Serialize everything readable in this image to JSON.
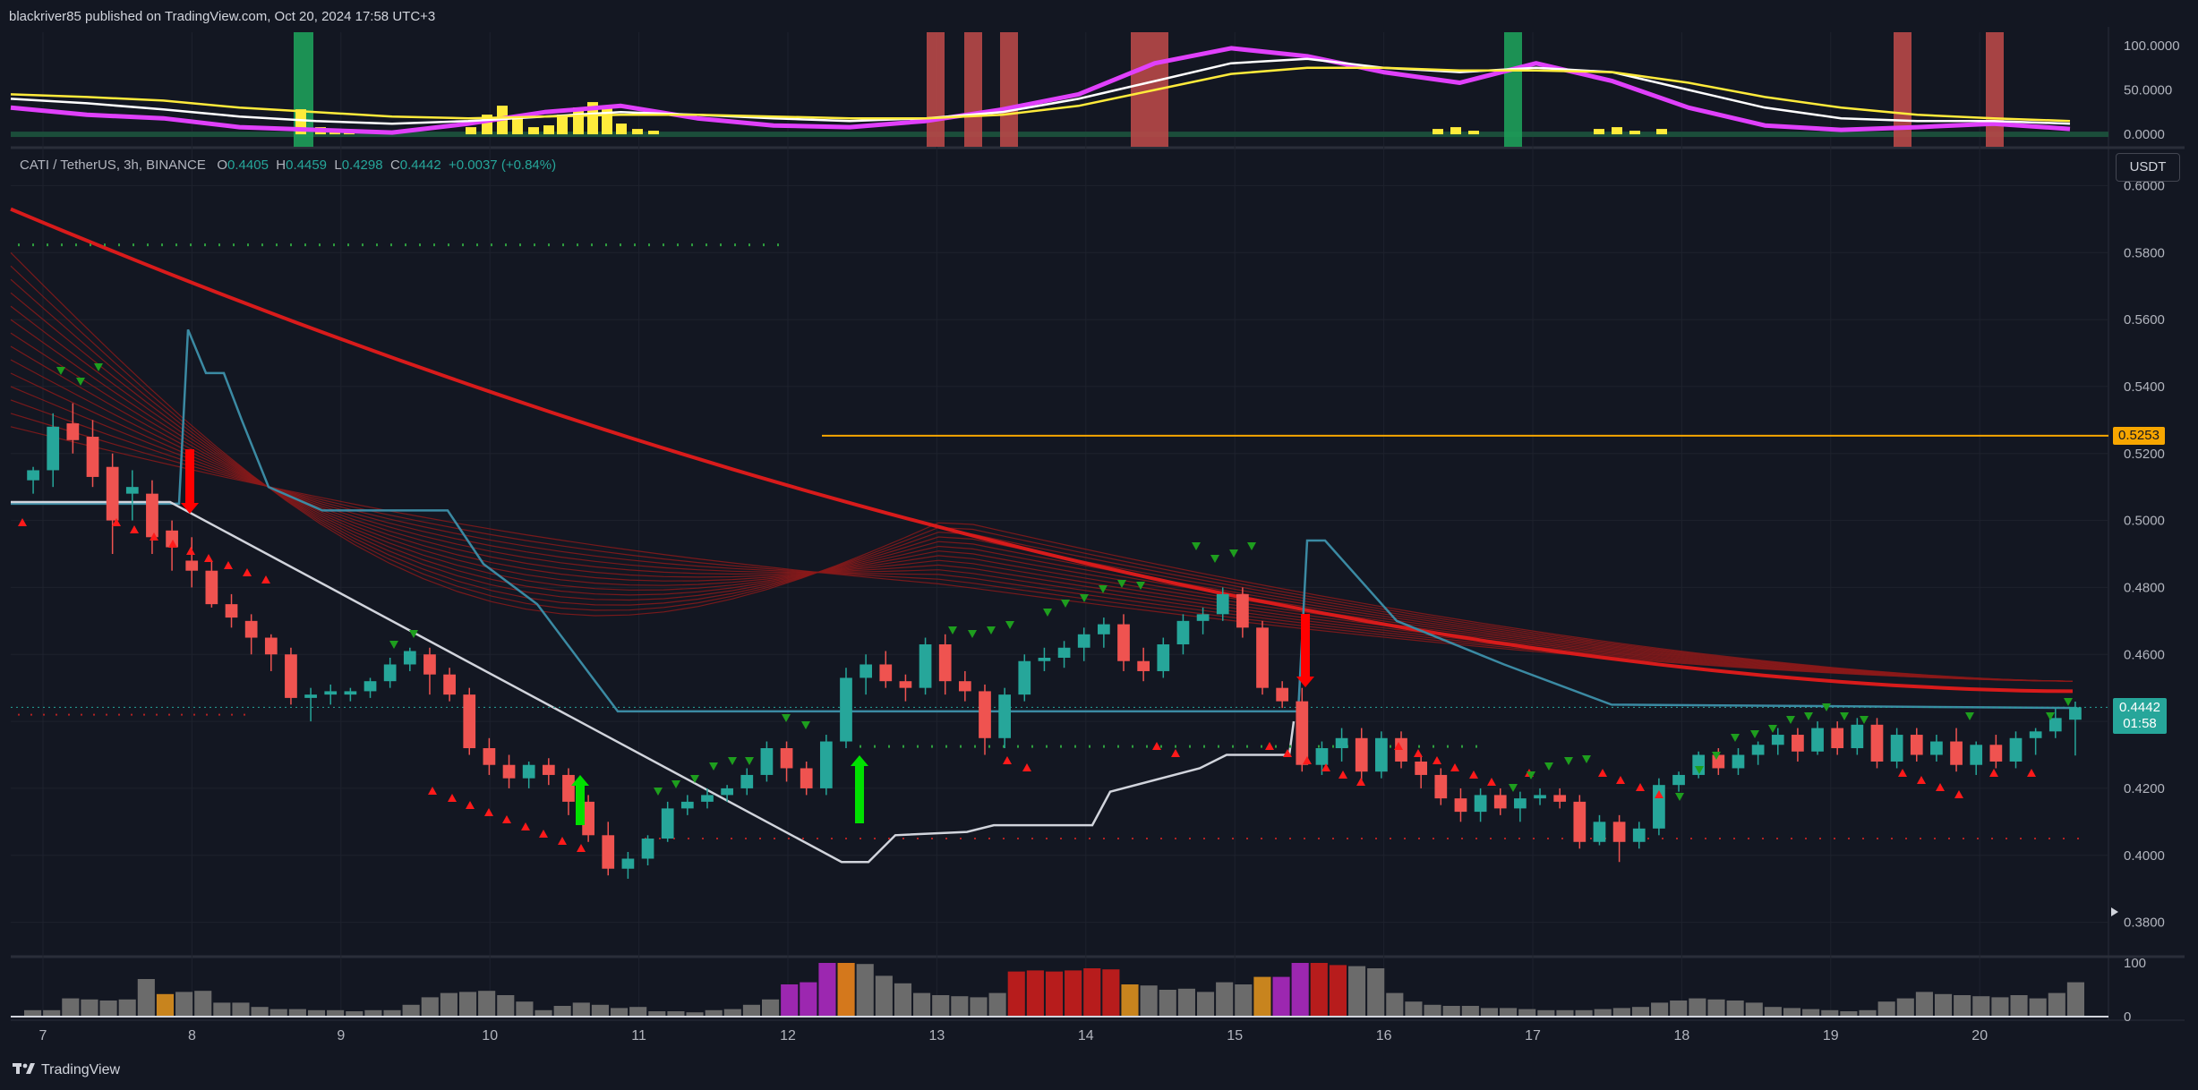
{
  "header": {
    "published": "blackriver85 published on TradingView.com, Oct 20, 2024 17:58 UTC+3"
  },
  "symbol": {
    "name": "CATI / TetherUS, 3h, BINANCE",
    "o_label": "O",
    "o": "0.4405",
    "h_label": "H",
    "h": "0.4459",
    "l_label": "L",
    "l": "0.4298",
    "c_label": "C",
    "c": "0.4442",
    "change": "+0.0037 (+0.84%)"
  },
  "currency_button": "USDT",
  "brand": {
    "name": "TradingView",
    "logo": "tradingview-logo-icon"
  },
  "colors": {
    "bg": "#131722",
    "bull": "#26a69a",
    "bear": "#ef5350",
    "ribbon_main": "#d81b1b",
    "oscillator_main": "#e040fb",
    "level_line": "#f7a600"
  },
  "chart_data": [
    {
      "type": "line",
      "panel": "oscillator",
      "ylim": [
        -10,
        115
      ],
      "y_ticks": [
        "100.0000",
        "50.0000",
        "0.0000"
      ],
      "y_tick_values": [
        100,
        50,
        0
      ],
      "series": [
        {
          "color": "#e040fb",
          "x": [
            0,
            1,
            2,
            3,
            4,
            5,
            6,
            7,
            8,
            9,
            10,
            11,
            12,
            13,
            14,
            15,
            16,
            17,
            18,
            19,
            20,
            21,
            22,
            23,
            24,
            25,
            26,
            27
          ],
          "values": [
            30,
            22,
            18,
            8,
            5,
            2,
            12,
            25,
            32,
            18,
            10,
            8,
            15,
            28,
            45,
            80,
            97,
            88,
            70,
            58,
            80,
            60,
            30,
            10,
            5,
            8,
            12,
            6
          ]
        },
        {
          "color": "#ffffff",
          "x": [
            0,
            1,
            2,
            3,
            4,
            5,
            6,
            7,
            8,
            9,
            10,
            11,
            12,
            13,
            14,
            15,
            16,
            17,
            18,
            19,
            20,
            21,
            22,
            23,
            24,
            25,
            26,
            27
          ],
          "values": [
            40,
            35,
            28,
            20,
            15,
            12,
            15,
            20,
            25,
            22,
            18,
            15,
            18,
            25,
            40,
            60,
            80,
            85,
            75,
            70,
            75,
            70,
            50,
            30,
            18,
            15,
            15,
            12
          ]
        },
        {
          "color": "#ffeb3b",
          "x": [
            0,
            1,
            2,
            3,
            4,
            5,
            6,
            7,
            8,
            9,
            10,
            11,
            12,
            13,
            14,
            15,
            16,
            17,
            18,
            19,
            20,
            21,
            22,
            23,
            24,
            25,
            26,
            27
          ],
          "values": [
            45,
            42,
            38,
            30,
            25,
            20,
            18,
            20,
            22,
            22,
            20,
            18,
            18,
            22,
            32,
            50,
            68,
            75,
            75,
            72,
            72,
            70,
            58,
            42,
            30,
            22,
            18,
            15
          ]
        }
      ]
    },
    {
      "type": "bar",
      "panel": "price",
      "ylim": [
        0.37,
        0.61
      ],
      "y_ticks": [
        "0.6000",
        "0.5800",
        "0.5600",
        "0.5400",
        "0.5200",
        "0.5000",
        "0.4800",
        "0.4600",
        "0.4400",
        "0.4200",
        "0.4000",
        "0.3800"
      ],
      "y_tick_values": [
        0.6,
        0.58,
        0.56,
        0.54,
        0.52,
        0.5,
        0.48,
        0.46,
        0.44,
        0.42,
        0.4,
        0.38
      ],
      "x_ticks": [
        "7",
        "8",
        "9",
        "10",
        "11",
        "12",
        "13",
        "14",
        "15",
        "16",
        "17",
        "18",
        "19",
        "20"
      ],
      "price_tag": "0.4442",
      "countdown": "01:58",
      "level": {
        "label": "0.5253",
        "value": 0.5253
      },
      "ohlc": [
        [
          0.512,
          0.516,
          0.508,
          0.515
        ],
        [
          0.515,
          0.532,
          0.51,
          0.528
        ],
        [
          0.529,
          0.535,
          0.52,
          0.524
        ],
        [
          0.525,
          0.53,
          0.51,
          0.513
        ],
        [
          0.516,
          0.52,
          0.49,
          0.5
        ],
        [
          0.508,
          0.515,
          0.5,
          0.51
        ],
        [
          0.508,
          0.512,
          0.49,
          0.495
        ],
        [
          0.497,
          0.5,
          0.485,
          0.492
        ],
        [
          0.488,
          0.495,
          0.48,
          0.485
        ],
        [
          0.485,
          0.488,
          0.474,
          0.475
        ],
        [
          0.475,
          0.478,
          0.468,
          0.471
        ],
        [
          0.47,
          0.472,
          0.46,
          0.465
        ],
        [
          0.465,
          0.466,
          0.455,
          0.46
        ],
        [
          0.46,
          0.462,
          0.445,
          0.447
        ],
        [
          0.447,
          0.45,
          0.44,
          0.448
        ],
        [
          0.448,
          0.451,
          0.445,
          0.449
        ],
        [
          0.448,
          0.45,
          0.446,
          0.449
        ],
        [
          0.449,
          0.453,
          0.447,
          0.452
        ],
        [
          0.452,
          0.459,
          0.45,
          0.457
        ],
        [
          0.457,
          0.462,
          0.455,
          0.461
        ],
        [
          0.46,
          0.462,
          0.448,
          0.454
        ],
        [
          0.454,
          0.456,
          0.446,
          0.448
        ],
        [
          0.448,
          0.45,
          0.43,
          0.432
        ],
        [
          0.432,
          0.435,
          0.424,
          0.427
        ],
        [
          0.427,
          0.43,
          0.42,
          0.423
        ],
        [
          0.423,
          0.428,
          0.42,
          0.427
        ],
        [
          0.427,
          0.429,
          0.421,
          0.424
        ],
        [
          0.424,
          0.426,
          0.412,
          0.416
        ],
        [
          0.416,
          0.418,
          0.404,
          0.406
        ],
        [
          0.406,
          0.41,
          0.394,
          0.396
        ],
        [
          0.396,
          0.401,
          0.393,
          0.399
        ],
        [
          0.399,
          0.406,
          0.397,
          0.405
        ],
        [
          0.405,
          0.416,
          0.404,
          0.414
        ],
        [
          0.414,
          0.418,
          0.412,
          0.416
        ],
        [
          0.416,
          0.42,
          0.414,
          0.418
        ],
        [
          0.418,
          0.421,
          0.416,
          0.42
        ],
        [
          0.42,
          0.426,
          0.418,
          0.424
        ],
        [
          0.424,
          0.434,
          0.422,
          0.432
        ],
        [
          0.432,
          0.434,
          0.422,
          0.426
        ],
        [
          0.426,
          0.428,
          0.418,
          0.42
        ],
        [
          0.42,
          0.436,
          0.418,
          0.434
        ],
        [
          0.434,
          0.456,
          0.432,
          0.453
        ],
        [
          0.453,
          0.46,
          0.448,
          0.457
        ],
        [
          0.457,
          0.461,
          0.45,
          0.452
        ],
        [
          0.452,
          0.454,
          0.446,
          0.45
        ],
        [
          0.45,
          0.465,
          0.448,
          0.463
        ],
        [
          0.463,
          0.466,
          0.448,
          0.452
        ],
        [
          0.452,
          0.455,
          0.446,
          0.449
        ],
        [
          0.449,
          0.451,
          0.43,
          0.435
        ],
        [
          0.435,
          0.45,
          0.432,
          0.448
        ],
        [
          0.448,
          0.46,
          0.446,
          0.458
        ],
        [
          0.458,
          0.462,
          0.455,
          0.459
        ],
        [
          0.459,
          0.464,
          0.456,
          0.462
        ],
        [
          0.462,
          0.468,
          0.458,
          0.466
        ],
        [
          0.466,
          0.471,
          0.462,
          0.469
        ],
        [
          0.469,
          0.472,
          0.455,
          0.458
        ],
        [
          0.458,
          0.462,
          0.452,
          0.455
        ],
        [
          0.455,
          0.465,
          0.453,
          0.463
        ],
        [
          0.463,
          0.472,
          0.46,
          0.47
        ],
        [
          0.47,
          0.474,
          0.466,
          0.472
        ],
        [
          0.472,
          0.48,
          0.47,
          0.478
        ],
        [
          0.478,
          0.48,
          0.465,
          0.468
        ],
        [
          0.468,
          0.47,
          0.448,
          0.45
        ],
        [
          0.45,
          0.452,
          0.444,
          0.446
        ],
        [
          0.446,
          0.45,
          0.425,
          0.427
        ],
        [
          0.427,
          0.434,
          0.424,
          0.432
        ],
        [
          0.432,
          0.438,
          0.428,
          0.435
        ],
        [
          0.435,
          0.438,
          0.422,
          0.425
        ],
        [
          0.425,
          0.437,
          0.423,
          0.435
        ],
        [
          0.435,
          0.437,
          0.426,
          0.428
        ],
        [
          0.428,
          0.43,
          0.42,
          0.424
        ],
        [
          0.424,
          0.426,
          0.415,
          0.417
        ],
        [
          0.417,
          0.42,
          0.41,
          0.413
        ],
        [
          0.413,
          0.42,
          0.41,
          0.418
        ],
        [
          0.418,
          0.42,
          0.412,
          0.414
        ],
        [
          0.414,
          0.419,
          0.41,
          0.417
        ],
        [
          0.417,
          0.42,
          0.415,
          0.418
        ],
        [
          0.418,
          0.42,
          0.414,
          0.416
        ],
        [
          0.416,
          0.418,
          0.402,
          0.404
        ],
        [
          0.404,
          0.412,
          0.403,
          0.41
        ],
        [
          0.41,
          0.412,
          0.398,
          0.404
        ],
        [
          0.404,
          0.41,
          0.402,
          0.408
        ],
        [
          0.408,
          0.423,
          0.406,
          0.421
        ],
        [
          0.421,
          0.425,
          0.419,
          0.424
        ],
        [
          0.424,
          0.431,
          0.423,
          0.43
        ],
        [
          0.43,
          0.432,
          0.424,
          0.426
        ],
        [
          0.426,
          0.432,
          0.424,
          0.43
        ],
        [
          0.43,
          0.434,
          0.427,
          0.433
        ],
        [
          0.433,
          0.438,
          0.43,
          0.436
        ],
        [
          0.436,
          0.438,
          0.428,
          0.431
        ],
        [
          0.431,
          0.44,
          0.43,
          0.438
        ],
        [
          0.438,
          0.44,
          0.43,
          0.432
        ],
        [
          0.432,
          0.441,
          0.43,
          0.439
        ],
        [
          0.439,
          0.441,
          0.426,
          0.428
        ],
        [
          0.428,
          0.438,
          0.426,
          0.436
        ],
        [
          0.436,
          0.438,
          0.428,
          0.43
        ],
        [
          0.43,
          0.436,
          0.428,
          0.434
        ],
        [
          0.434,
          0.438,
          0.425,
          0.427
        ],
        [
          0.427,
          0.434,
          0.424,
          0.433
        ],
        [
          0.433,
          0.436,
          0.426,
          0.428
        ],
        [
          0.428,
          0.437,
          0.426,
          0.435
        ],
        [
          0.435,
          0.438,
          0.43,
          0.437
        ],
        [
          0.437,
          0.444,
          0.435,
          0.441
        ],
        [
          0.4405,
          0.4459,
          0.4298,
          0.4442
        ]
      ]
    },
    {
      "type": "bar",
      "panel": "volume",
      "ylim": [
        0,
        110
      ],
      "y_ticks": [
        "100",
        "0"
      ],
      "y_tick_values": [
        100,
        0
      ],
      "values": [
        12,
        12,
        34,
        32,
        30,
        32,
        70,
        42,
        46,
        48,
        26,
        26,
        18,
        14,
        14,
        12,
        12,
        10,
        12,
        12,
        22,
        36,
        44,
        46,
        48,
        40,
        28,
        12,
        20,
        26,
        22,
        16,
        18,
        10,
        10,
        8,
        12,
        14,
        22,
        32,
        60,
        64,
        100,
        100,
        98,
        76,
        62,
        44,
        40,
        38,
        36,
        44,
        84,
        86,
        84,
        86,
        90,
        88,
        60,
        58,
        50,
        52,
        46,
        64,
        60,
        74,
        74,
        100,
        100,
        96,
        94,
        90,
        44,
        28,
        22,
        20,
        20,
        16,
        16,
        14,
        12,
        12,
        12,
        14,
        16,
        18,
        26,
        30,
        34,
        32,
        30,
        26,
        18,
        16,
        14,
        12,
        10,
        12,
        28,
        34,
        46,
        42,
        40,
        38,
        36,
        40,
        34,
        44,
        64
      ]
    }
  ]
}
